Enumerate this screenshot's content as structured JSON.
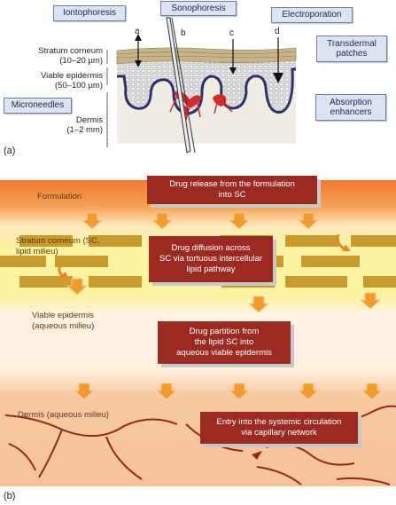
{
  "panel_a": {
    "methods": {
      "iontophoresis": "Iontophoresis",
      "sonophoresis": "Sonophoresis",
      "electroporation": "Electroporation",
      "transdermal": "Transdermal\npatches",
      "microneedles": "Microneedles",
      "absorption": "Absorption\nenhancers"
    },
    "layers": {
      "sc": "Stratum corneum\n(10–20 µm)",
      "ve": "Viable epidermis\n(50–100 µm)",
      "dermis": "Dermis\n(1–2 mm)"
    },
    "letters": {
      "a": "a",
      "b": "b",
      "c": "c",
      "d": "d"
    },
    "panel_label": "(a)"
  },
  "panel_b": {
    "zones": {
      "formulation": "Formulation",
      "sc": "Stratum corneum (SC,\nlipid milieu)",
      "ve": "Viable epidermis\n(aqueous milieu)",
      "dermis": "Dermis (aqueous milieu)"
    },
    "steps": {
      "s1": "Drug release from the formulation\ninto SC",
      "s2": "Drug diffusion across\nSC via tortuous intercellular\nlipid pathway",
      "s3": "Drug partition from\nthe lipid SC into\naqueous viable epidermis",
      "s4": "Entry into the systemic circulation\nvia capillary network"
    },
    "panel_label": "(b)"
  },
  "colors": {
    "tag_fill": "#dce4f2",
    "step_fill": "#9b2b22",
    "arrow": "#f19a2d",
    "brick": "#c99a2e",
    "vessel": "#8e2a18"
  }
}
